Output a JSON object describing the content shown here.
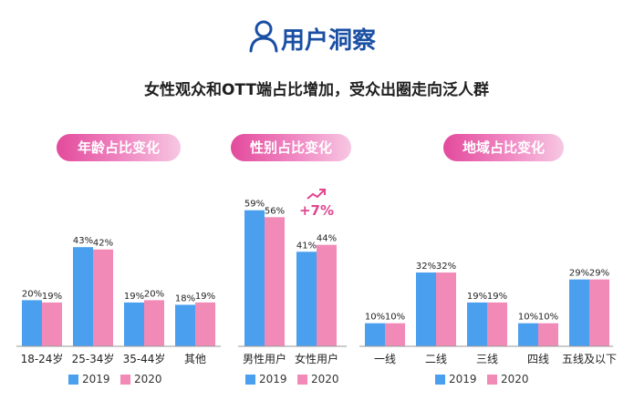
{
  "header": {
    "title": "用户洞察",
    "subtitle": "女性观众和OTT端占比增加，受众出圈走向泛人群"
  },
  "colors": {
    "blue": "#4a9fee",
    "pink": "#f28ab8",
    "accent": "#e0468f",
    "title": "#1a4fa3"
  },
  "chart_data": [
    {
      "type": "bar",
      "title": "年龄占比变化",
      "categories": [
        "18-24岁",
        "25-34岁",
        "35-44岁",
        "其他"
      ],
      "series": [
        {
          "name": "2019",
          "values": [
            20,
            43,
            19,
            18
          ]
        },
        {
          "name": "2020",
          "values": [
            19,
            42,
            20,
            19
          ]
        }
      ],
      "value_labels": [
        [
          "20%",
          "43%",
          "19%",
          "18%"
        ],
        [
          "19%",
          "42%",
          "20%",
          "19%"
        ]
      ],
      "ylim": [
        0,
        70
      ],
      "legend": "bottom"
    },
    {
      "type": "bar",
      "title": "性别占比变化",
      "categories": [
        "男性用户",
        "女性用户"
      ],
      "series": [
        {
          "name": "2019",
          "values": [
            59,
            41
          ]
        },
        {
          "name": "2020",
          "values": [
            56,
            44
          ]
        }
      ],
      "value_labels": [
        [
          "59%",
          "41%"
        ],
        [
          "56%",
          "44%"
        ]
      ],
      "annotation": "+7%",
      "ylim": [
        0,
        70
      ],
      "legend": "bottom"
    },
    {
      "type": "bar",
      "title": "地域占比变化",
      "categories": [
        "一线",
        "二线",
        "三线",
        "四线",
        "五线及以下"
      ],
      "series": [
        {
          "name": "2019",
          "values": [
            10,
            32,
            19,
            10,
            29
          ]
        },
        {
          "name": "2020",
          "values": [
            10,
            32,
            19,
            10,
            29
          ]
        }
      ],
      "value_labels": [
        [
          "10%",
          "32%",
          "19%",
          "10%",
          "29%"
        ],
        [
          "10%",
          "32%",
          "19%",
          "10%",
          "29%"
        ]
      ],
      "ylim": [
        0,
        70
      ],
      "legend": "bottom"
    }
  ]
}
